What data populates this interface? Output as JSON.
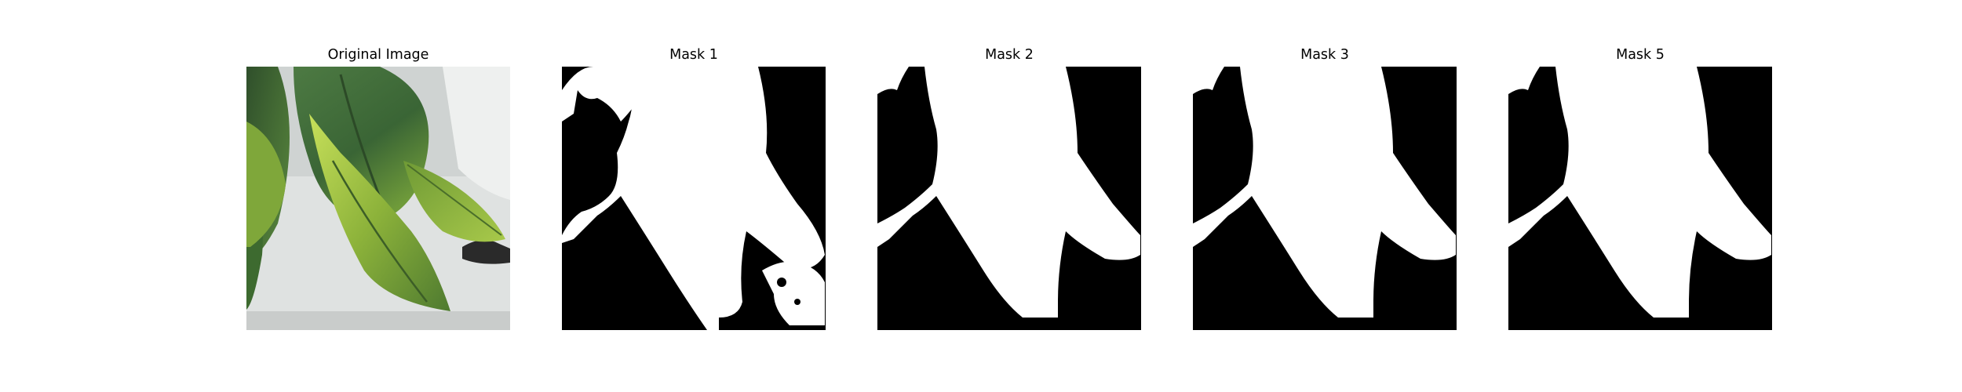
{
  "figure": {
    "panels": [
      {
        "title": "Original Image",
        "kind": "photo",
        "subject": "green-leaves"
      },
      {
        "title": "Mask 1",
        "kind": "mask"
      },
      {
        "title": "Mask 2",
        "kind": "mask"
      },
      {
        "title": "Mask 3",
        "kind": "mask"
      },
      {
        "title": "Mask 5",
        "kind": "mask"
      }
    ]
  },
  "colors": {
    "mask_foreground": "#ffffff",
    "mask_background": "#000000",
    "leaf_dark": "#3f6b3a",
    "leaf_light": "#9fc44a",
    "wall": "#e4e6e5"
  }
}
